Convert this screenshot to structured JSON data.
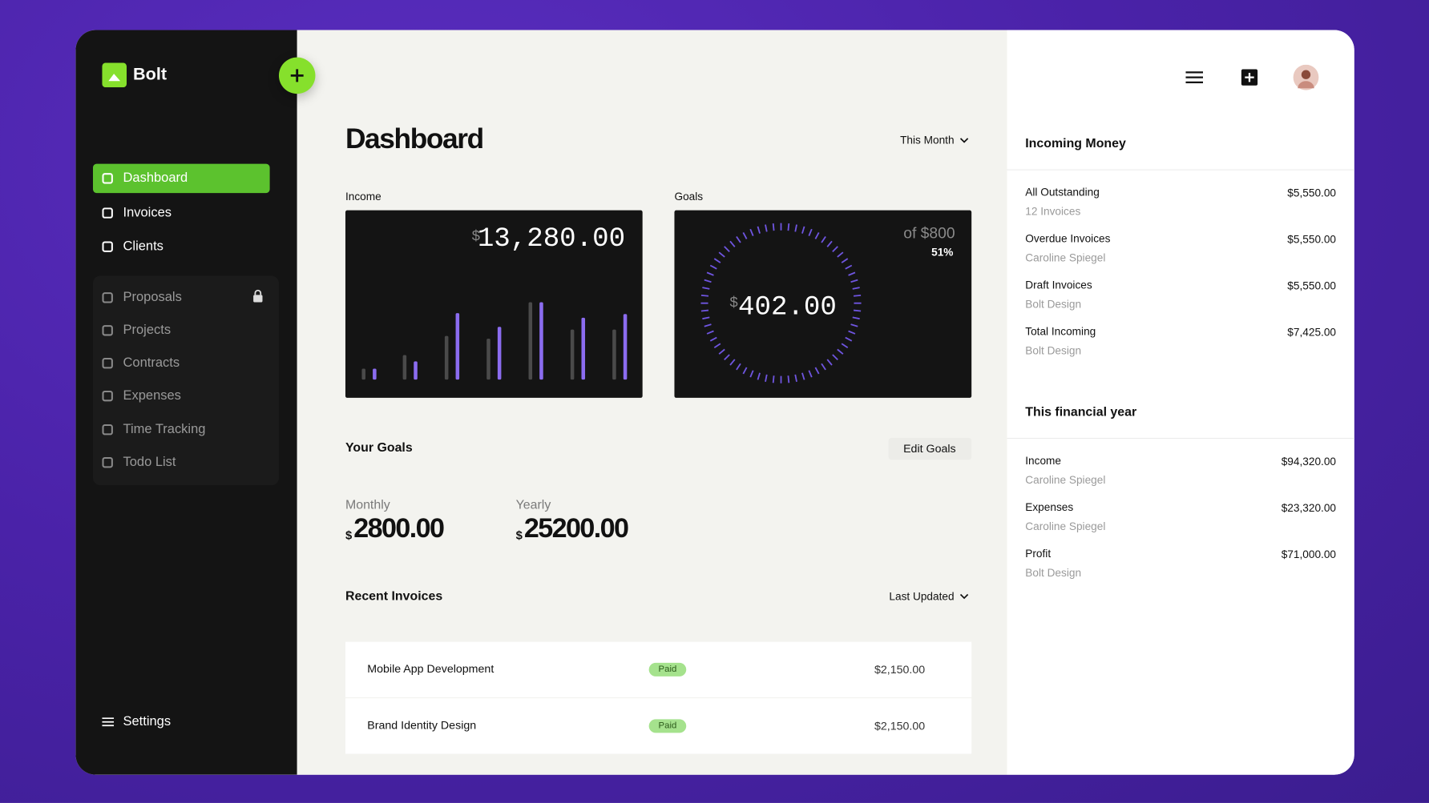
{
  "brand": "Bolt",
  "nav": {
    "primary": [
      "Dashboard",
      "Invoices",
      "Clients"
    ],
    "secondary": [
      "Proposals",
      "Projects",
      "Contracts",
      "Expenses",
      "Time Tracking",
      "Todo List"
    ],
    "settings": "Settings"
  },
  "header": {
    "title": "Dashboard",
    "period": "This Month"
  },
  "income": {
    "label": "Income",
    "currency": "$",
    "amount": "13,280.00",
    "chart": {
      "series": [
        {
          "color": "#4a4a4a",
          "values": [
            12,
            27,
            48,
            45,
            85,
            55,
            55
          ]
        },
        {
          "color": "#8b6cf0",
          "values": [
            12,
            20,
            73,
            58,
            85,
            68,
            72
          ]
        }
      ]
    }
  },
  "goals": {
    "label": "Goals",
    "target": "of $800",
    "percent": "51%",
    "currency": "$",
    "amount": "402.00"
  },
  "your_goals": {
    "title": "Your Goals",
    "button": "Edit Goals",
    "items": [
      {
        "label": "Monthly",
        "currency": "$",
        "amount": "2800.00"
      },
      {
        "label": "Yearly",
        "currency": "$",
        "amount": "25200.00"
      }
    ]
  },
  "recent_invoices": {
    "title": "Recent Invoices",
    "sort": "Last Updated",
    "rows": [
      {
        "name": "Mobile App Development",
        "status": "Paid",
        "amount": "$2,150.00"
      },
      {
        "name": "Brand Identity Design",
        "status": "Paid",
        "amount": "$2,150.00"
      }
    ]
  },
  "incoming_money": {
    "title": "Incoming Money",
    "rows": [
      {
        "label": "All Outstanding",
        "sub": "12 Invoices",
        "amount": "$5,550.00"
      },
      {
        "label": "Overdue Invoices",
        "sub": "Caroline Spiegel",
        "amount": "$5,550.00"
      },
      {
        "label": "Draft Invoices",
        "sub": "Bolt Design",
        "amount": "$5,550.00"
      },
      {
        "label": "Total Incoming",
        "sub": "Bolt Design",
        "amount": "$7,425.00"
      }
    ]
  },
  "financial_year": {
    "title": "This financial year",
    "rows": [
      {
        "label": "Income",
        "sub": "Caroline Spiegel",
        "amount": "$94,320.00"
      },
      {
        "label": "Expenses",
        "sub": "Caroline Spiegel",
        "amount": "$23,320.00"
      },
      {
        "label": "Profit",
        "sub": "Bolt Design",
        "amount": "$71,000.00"
      }
    ]
  }
}
